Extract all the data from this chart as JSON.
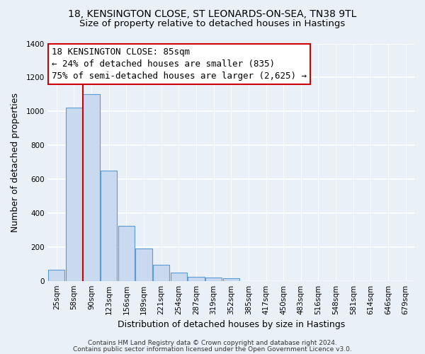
{
  "title_line1": "18, KENSINGTON CLOSE, ST LEONARDS-ON-SEA, TN38 9TL",
  "title_line2": "Size of property relative to detached houses in Hastings",
  "xlabel": "Distribution of detached houses by size in Hastings",
  "ylabel": "Number of detached properties",
  "bar_labels": [
    "25sqm",
    "58sqm",
    "90sqm",
    "123sqm",
    "156sqm",
    "189sqm",
    "221sqm",
    "254sqm",
    "287sqm",
    "319sqm",
    "352sqm",
    "385sqm",
    "417sqm",
    "450sqm",
    "483sqm",
    "516sqm",
    "548sqm",
    "581sqm",
    "614sqm",
    "646sqm",
    "679sqm"
  ],
  "bar_values": [
    65,
    1020,
    1100,
    650,
    325,
    190,
    95,
    50,
    25,
    20,
    15,
    0,
    0,
    0,
    0,
    0,
    0,
    0,
    0,
    0,
    0
  ],
  "bar_color": "#c9d9f0",
  "bar_edge_color": "#5b9bd5",
  "vline_color": "#cc0000",
  "vline_x": 1.5,
  "annotation_line1": "18 KENSINGTON CLOSE: 85sqm",
  "annotation_line2": "← 24% of detached houses are smaller (835)",
  "annotation_line3": "75% of semi-detached houses are larger (2,625) →",
  "annotation_box_color": "white",
  "annotation_box_edge_color": "#cc0000",
  "ylim": [
    0,
    1400
  ],
  "yticks": [
    0,
    200,
    400,
    600,
    800,
    1000,
    1200,
    1400
  ],
  "footer_line1": "Contains HM Land Registry data © Crown copyright and database right 2024.",
  "footer_line2": "Contains public sector information licensed under the Open Government Licence v3.0.",
  "bg_color": "#eaf0f8",
  "grid_color": "white",
  "title_fontsize": 10,
  "subtitle_fontsize": 9.5,
  "axis_label_fontsize": 9,
  "tick_fontsize": 7.5,
  "annotation_fontsize": 9,
  "footer_fontsize": 6.5
}
